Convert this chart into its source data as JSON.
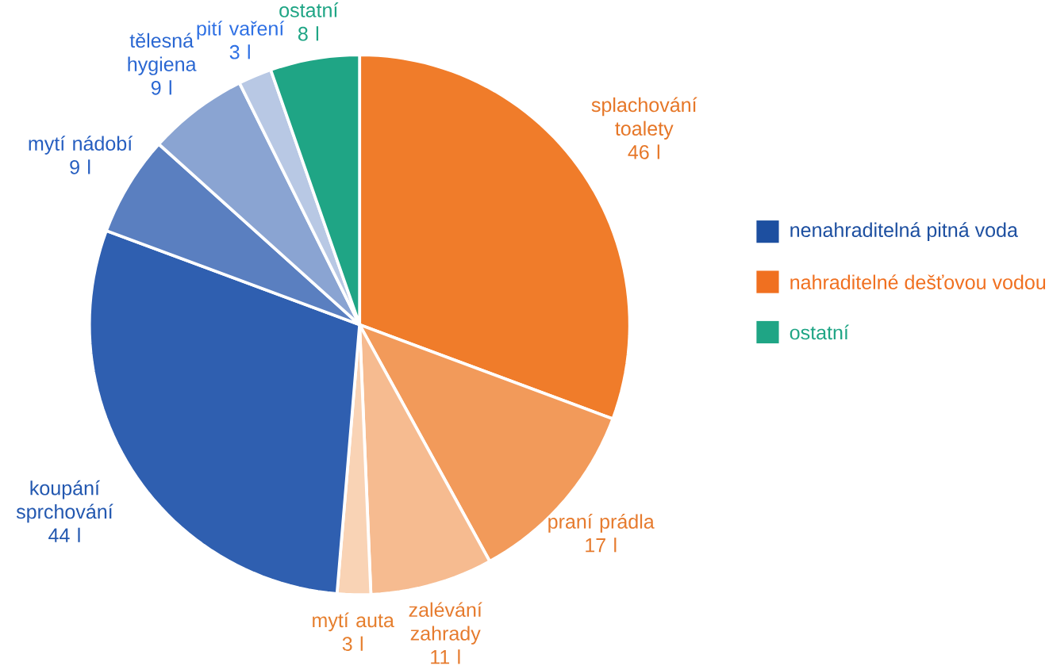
{
  "chart_data": {
    "type": "pie",
    "categories": [
      "splachování toalety",
      "praní prádla",
      "zalévání zahrady",
      "mytí auta",
      "koupání sprchování",
      "mytí nádobí",
      "tělesná hygiena",
      "pití vaření",
      "ostatní"
    ],
    "values": [
      46,
      17,
      11,
      3,
      44,
      9,
      9,
      3,
      8
    ],
    "value_labels": [
      "46 l",
      "17 l",
      "11 l",
      "3 l",
      "44 l",
      "9 l",
      "9 l",
      "3 l",
      "8 l"
    ],
    "colors": [
      "#f07c2a",
      "#f29a5a",
      "#f6bb90",
      "#f9d3b5",
      "#2f5fb0",
      "#5a7fc0",
      "#8aa4d2",
      "#b8c8e4",
      "#1fa585"
    ],
    "annotations": [
      "nenahraditelná pitná voda",
      "nahraditelné dešťovou vodou",
      "ostatní"
    ]
  }
}
